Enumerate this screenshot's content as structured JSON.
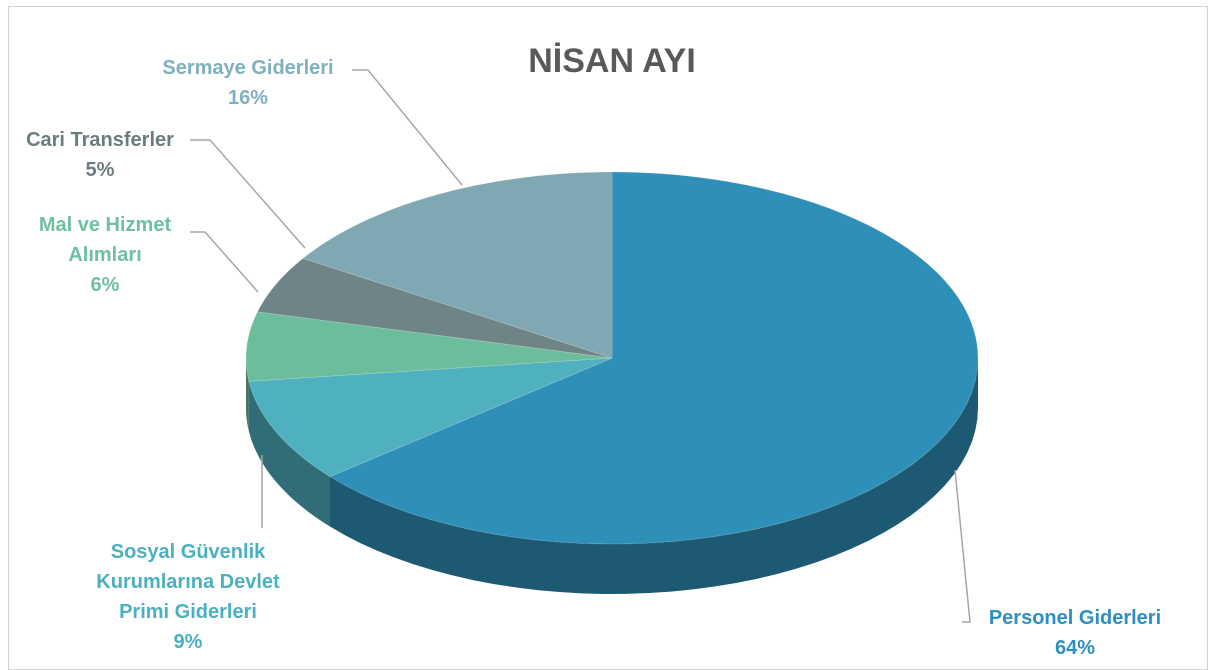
{
  "chart_data": {
    "type": "pie3d",
    "title": "NİSAN AYI",
    "categories": [
      "Personel Giderleri",
      "Sosyal Güvenlik Kurumlarına Devlet Primi Giderleri",
      "Mal ve Hizmet Alımları",
      "Cari Transferler",
      "Sermaye Giderleri"
    ],
    "values": [
      64,
      9,
      6,
      5,
      16
    ],
    "value_labels": [
      "64%",
      "9%",
      "6%",
      "5%",
      "16%"
    ],
    "colors": [
      "#2e8fb8",
      "#4fb0bf",
      "#6cbd9c",
      "#6f8486",
      "#7fa8b2"
    ],
    "label_colors": [
      "#2e8fc2",
      "#4bb0c0",
      "#6fc0a0",
      "#6b7c80",
      "#7fb0c0"
    ]
  }
}
